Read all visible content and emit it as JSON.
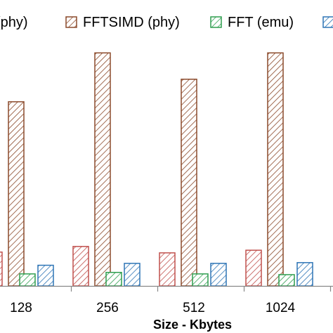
{
  "chart_data": {
    "type": "bar",
    "xlabel": "Size - Kbytes",
    "categories": [
      "128",
      "256",
      "512",
      "1024"
    ],
    "series": [
      {
        "name": "(phy)",
        "color": "#c0504d",
        "values": [
          0.9,
          1.05,
          0.88,
          0.95
        ]
      },
      {
        "name": "FFTSIMD (phy)",
        "color": "#8b4a2b",
        "values": [
          4.9,
          6.2,
          5.5,
          6.2
        ]
      },
      {
        "name": "FFT (emu)",
        "color": "#2e9e4f",
        "values": [
          0.32,
          0.36,
          0.32,
          0.3
        ]
      },
      {
        "name": "",
        "color": "#2e75b6",
        "values": [
          0.55,
          0.6,
          0.6,
          0.62
        ]
      }
    ]
  }
}
